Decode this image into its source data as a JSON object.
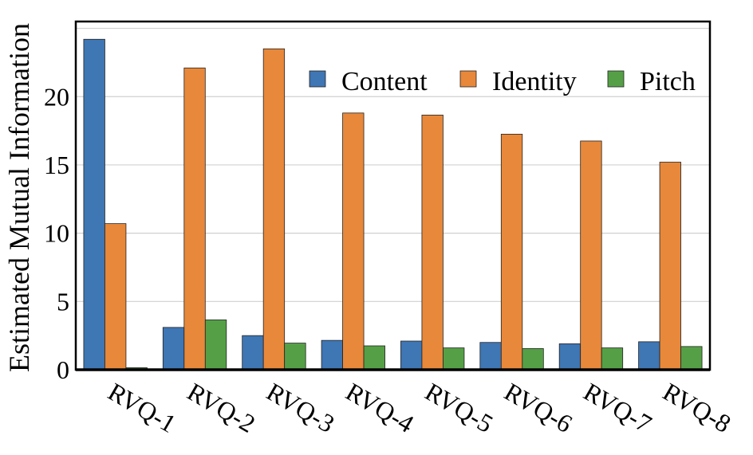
{
  "chart_data": {
    "type": "bar",
    "title": "",
    "xlabel": "",
    "ylabel": "Estimated Mutual Information",
    "ylim": [
      0,
      25.5
    ],
    "yticks": [
      0,
      5,
      10,
      15,
      20
    ],
    "grid": true,
    "legend_position": "top-right",
    "categories": [
      "RVQ-1",
      "RVQ-2",
      "RVQ-3",
      "RVQ-4",
      "RVQ-5",
      "RVQ-6",
      "RVQ-7",
      "RVQ-8"
    ],
    "series": [
      {
        "name": "Content",
        "color": "#3f76b4",
        "values": [
          24.2,
          3.1,
          2.5,
          2.15,
          2.1,
          2.0,
          1.9,
          2.05
        ]
      },
      {
        "name": "Identity",
        "color": "#e8883a",
        "values": [
          10.7,
          22.1,
          23.5,
          18.8,
          18.65,
          17.25,
          16.75,
          15.2
        ]
      },
      {
        "name": "Pitch",
        "color": "#55a046",
        "values": [
          0.15,
          3.65,
          1.95,
          1.75,
          1.6,
          1.55,
          1.6,
          1.7
        ]
      }
    ]
  }
}
